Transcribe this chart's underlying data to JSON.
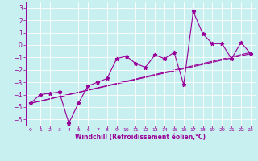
{
  "title": "",
  "xlabel": "Windchill (Refroidissement éolien,°C)",
  "ylabel": "",
  "bg_color": "#c8f0f0",
  "grid_color": "#ffffff",
  "line_color": "#990099",
  "xlim": [
    -0.5,
    23.5
  ],
  "ylim": [
    -6.5,
    3.5
  ],
  "xticks": [
    0,
    1,
    2,
    3,
    4,
    5,
    6,
    7,
    8,
    9,
    10,
    11,
    12,
    13,
    14,
    15,
    16,
    17,
    18,
    19,
    20,
    21,
    22,
    23
  ],
  "yticks": [
    -6,
    -5,
    -4,
    -3,
    -2,
    -1,
    0,
    1,
    2,
    3
  ],
  "series1_x": [
    0,
    1,
    2,
    3,
    4,
    5,
    6,
    7,
    8,
    9,
    10,
    11,
    12,
    13,
    14,
    15,
    16,
    17,
    18,
    19,
    20,
    21,
    22,
    23
  ],
  "series1_y": [
    -4.7,
    -4.0,
    -3.9,
    -3.8,
    -6.3,
    -4.7,
    -3.3,
    -3.0,
    -2.7,
    -1.1,
    -0.9,
    -1.5,
    -1.8,
    -0.8,
    -1.1,
    -0.6,
    -3.2,
    2.7,
    0.9,
    0.1,
    0.1,
    -1.1,
    0.2,
    -0.7
  ],
  "series2_x": [
    0,
    23
  ],
  "series2_y": [
    -4.7,
    -0.6
  ],
  "series3_x": [
    0,
    23
  ],
  "series3_y": [
    -4.7,
    -0.7
  ],
  "marker": "*",
  "markersize": 3.5,
  "linewidth": 0.8
}
